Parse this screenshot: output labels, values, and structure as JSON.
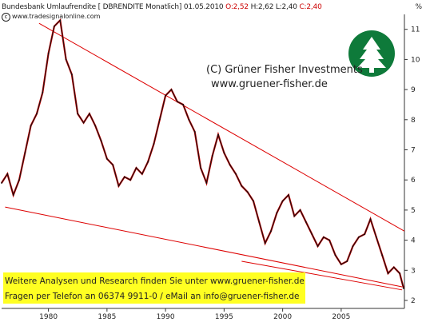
{
  "header": {
    "series_label": "Bundesbank Umlaufrendite [ DBRENDITE Monatlich] 01.05.2010",
    "open_text": "O:2,52",
    "high_low_text": "H:2,62 L:2,40",
    "close_text": "C:2,40",
    "source_text": "www.tradesignalonline.com",
    "copyright_symbol": "c",
    "unit_label": "%"
  },
  "watermark": {
    "line1": "(C) Grüner Fisher Investments",
    "line2": "www.gruener-fisher.de",
    "logo_icon": "tree-icon",
    "logo_color": "#0e7a3a"
  },
  "banner": {
    "line1": "Weitere Analysen und Research finden Sie unter www.gruener-fisher.de",
    "line2": "Fragen per Telefon an 06374 9911-0 / eMail an info@gruener-fisher.de",
    "background": "#ffff22"
  },
  "chart_data": {
    "type": "line",
    "title": "",
    "xlabel": "",
    "ylabel": "",
    "ylim": [
      2,
      12
    ],
    "xlim": [
      1976,
      2010.4
    ],
    "x_ticks": [
      1980,
      1985,
      1990,
      1995,
      2000,
      2005
    ],
    "x_tick_labels": [
      "1980",
      "1985",
      "1990",
      "1995",
      "2000",
      "2005"
    ],
    "y_ticks": [
      2,
      3,
      4,
      5,
      6,
      7,
      8,
      9,
      10,
      11
    ],
    "y_tick_labels": [
      "2",
      "3",
      "4",
      "5",
      "6",
      "7",
      "8",
      "9",
      "10",
      "11"
    ],
    "series": [
      {
        "color": "#111111",
        "x": [
          1976,
          1976.5,
          1977,
          1977.5,
          1978,
          1978.5,
          1979,
          1979.5,
          1980,
          1980.5,
          1981,
          1981.5,
          1982,
          1982.5,
          1983,
          1983.5,
          1984,
          1984.5,
          1985,
          1985.5,
          1986,
          1986.5,
          1987,
          1987.5,
          1988,
          1988.5,
          1989,
          1989.5,
          1990,
          1990.5,
          1991,
          1991.5,
          1992,
          1992.5,
          1993,
          1993.5,
          1994,
          1994.5,
          1995,
          1995.5,
          1996,
          1996.5,
          1997,
          1997.5,
          1998,
          1998.5,
          1999,
          1999.5,
          2000,
          2000.5,
          2001,
          2001.5,
          2002,
          2002.5,
          2003,
          2003.5,
          2004,
          2004.5,
          2005,
          2005.5,
          2006,
          2006.5,
          2007,
          2007.5,
          2008,
          2008.5,
          2009,
          2009.5,
          2010,
          2010.33
        ],
        "values": [
          5.9,
          6.2,
          5.5,
          6.0,
          6.9,
          7.8,
          8.2,
          8.9,
          10.2,
          11.1,
          11.3,
          10.0,
          9.5,
          8.2,
          7.9,
          8.2,
          7.8,
          7.3,
          6.7,
          6.5,
          5.8,
          6.1,
          6.0,
          6.4,
          6.2,
          6.6,
          7.2,
          8.0,
          8.8,
          9.0,
          8.6,
          8.5,
          8.0,
          7.6,
          6.4,
          5.9,
          6.8,
          7.5,
          6.9,
          6.5,
          6.2,
          5.8,
          5.6,
          5.3,
          4.6,
          3.9,
          4.3,
          4.9,
          5.3,
          5.5,
          4.8,
          5.0,
          4.6,
          4.2,
          3.8,
          4.1,
          4.0,
          3.5,
          3.2,
          3.3,
          3.8,
          4.1,
          4.2,
          4.7,
          4.1,
          3.5,
          2.9,
          3.1,
          2.9,
          2.4
        ]
      }
    ],
    "trendlines": [
      {
        "color": "#dd0000",
        "x": [
          1979.2,
          2010.4
        ],
        "values": [
          11.2,
          4.3
        ]
      },
      {
        "color": "#dd0000",
        "x": [
          1976.3,
          2010.2
        ],
        "values": [
          5.1,
          2.45
        ]
      },
      {
        "color": "#dd0000",
        "x": [
          1996.5,
          2010.2
        ],
        "values": [
          3.3,
          2.35
        ]
      }
    ],
    "grid": false,
    "legend": "none"
  }
}
